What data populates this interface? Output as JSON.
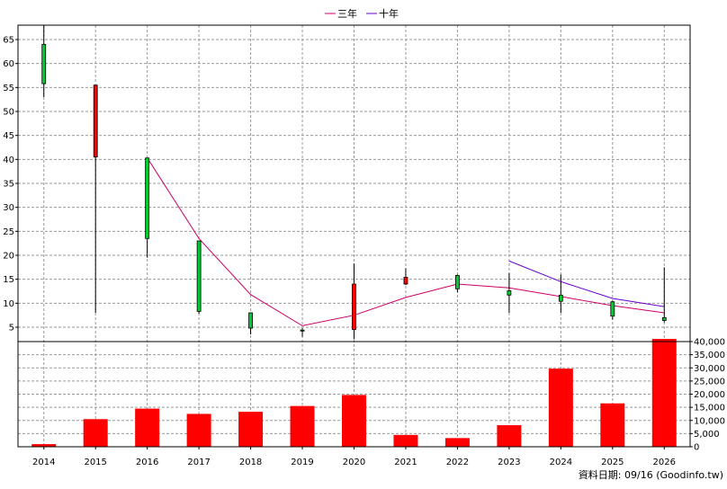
{
  "chart_data": [
    {
      "type": "candlestick",
      "legend_position": "top-center",
      "x": [
        "2014",
        "2015",
        "2016",
        "2017",
        "2018",
        "2019",
        "2020",
        "2021",
        "2022",
        "2023",
        "2024",
        "2025",
        "2026"
      ],
      "ylim": [
        2,
        68
      ],
      "yticks": [
        5,
        10,
        15,
        20,
        25,
        30,
        35,
        40,
        45,
        50,
        55,
        60,
        65
      ],
      "grid": true,
      "ohlc": [
        {
          "open": 55.8,
          "high": 68.0,
          "low": 53.0,
          "close": 64.0
        },
        {
          "open": 55.5,
          "high": 55.5,
          "low": 8.0,
          "close": 40.5
        },
        {
          "open": 23.5,
          "high": 40.3,
          "low": 19.5,
          "close": 40.3
        },
        {
          "open": 8.3,
          "high": 23.0,
          "low": 7.8,
          "close": 23.0
        },
        {
          "open": 4.8,
          "high": 8.0,
          "low": 3.5,
          "close": 8.0
        },
        {
          "open": 4.2,
          "high": 4.8,
          "low": 3.0,
          "close": 4.4
        },
        {
          "open": 14.0,
          "high": 18.3,
          "low": 2.5,
          "close": 4.5
        },
        {
          "open": 15.4,
          "high": 17.3,
          "low": 13.8,
          "close": 14.0
        },
        {
          "open": 13.0,
          "high": 16.0,
          "low": 12.3,
          "close": 15.8
        },
        {
          "open": 11.7,
          "high": 16.3,
          "low": 8.0,
          "close": 12.6
        },
        {
          "open": 10.4,
          "high": 16.0,
          "low": 8.0,
          "close": 11.7
        },
        {
          "open": 7.3,
          "high": 10.5,
          "low": 6.6,
          "close": 10.3
        },
        {
          "open": 6.4,
          "high": 17.5,
          "low": 6.0,
          "close": 7.0
        }
      ],
      "series": [
        {
          "name": "三年",
          "color": "#cc0066",
          "values": [
            null,
            null,
            40.3,
            23.5,
            11.8,
            5.3,
            7.5,
            11.2,
            14.0,
            13.2,
            11.4,
            9.5,
            8.0
          ]
        },
        {
          "name": "十年",
          "color": "#6600cc",
          "values": [
            null,
            null,
            null,
            null,
            null,
            null,
            null,
            null,
            null,
            18.8,
            14.5,
            11.0,
            9.3
          ]
        }
      ],
      "colors": {
        "up": "#00cc33",
        "down": "#ff0000",
        "grid": "#999999"
      }
    },
    {
      "type": "bar",
      "x": [
        "2014",
        "2015",
        "2016",
        "2017",
        "2018",
        "2019",
        "2020",
        "2021",
        "2022",
        "2023",
        "2024",
        "2025",
        "2026"
      ],
      "values": [
        1000,
        10500,
        14500,
        12500,
        13300,
        15500,
        19700,
        4500,
        3300,
        8200,
        29700,
        16500,
        41000
      ],
      "ylim": [
        0,
        40000
      ],
      "yticks": [
        0,
        5000,
        10000,
        15000,
        20000,
        25000,
        30000,
        35000,
        40000
      ],
      "ytick_labels": [
        "0",
        "5,000",
        "10,000",
        "15,000",
        "20,000",
        "25,000",
        "30,000",
        "35,000",
        "40,000"
      ],
      "color": "#ff0000",
      "grid": true
    }
  ],
  "footer": {
    "note": "資料日期: 09/16  (Goodinfo.tw)"
  }
}
